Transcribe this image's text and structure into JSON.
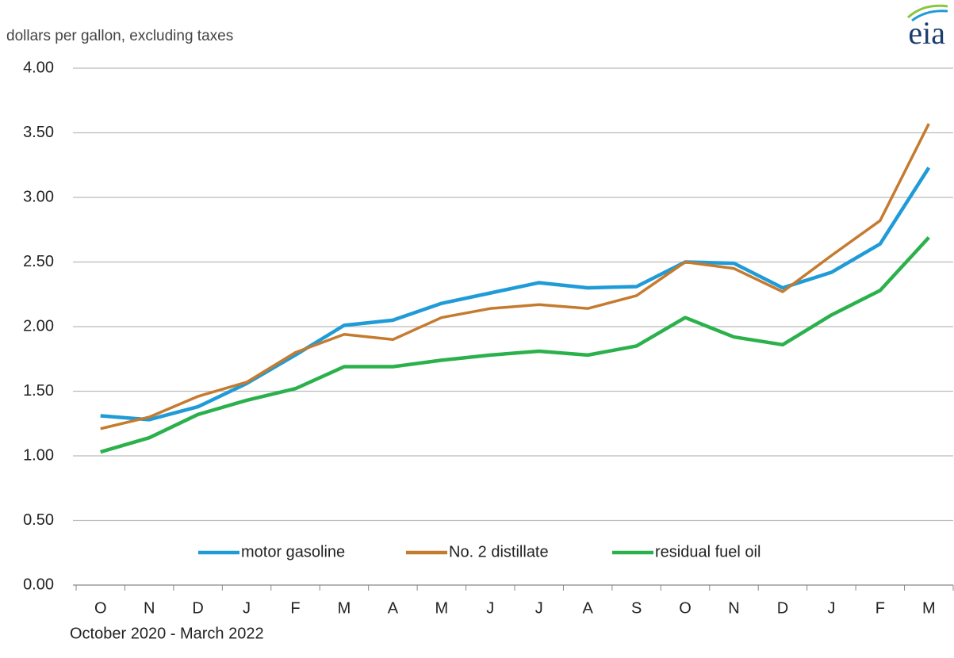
{
  "chart_data": {
    "type": "line",
    "logo": "eia",
    "subtitle": "dollars per gallon, excluding taxes",
    "x_label": "October 2020 - March 2022",
    "categories": [
      "O",
      "N",
      "D",
      "J",
      "F",
      "M",
      "A",
      "M",
      "J",
      "J",
      "A",
      "S",
      "O",
      "N",
      "D",
      "J",
      "F",
      "M"
    ],
    "series": [
      {
        "name": "motor gasoline",
        "color": "#1f9bd7",
        "values": [
          1.31,
          1.28,
          1.38,
          1.56,
          1.78,
          2.01,
          2.05,
          2.18,
          2.26,
          2.34,
          2.3,
          2.31,
          2.5,
          2.49,
          2.3,
          2.42,
          2.64,
          3.23
        ]
      },
      {
        "name": "No. 2 distillate",
        "color": "#c57b2f",
        "values": [
          1.21,
          1.3,
          1.46,
          1.57,
          1.8,
          1.94,
          1.9,
          2.07,
          2.14,
          2.17,
          2.14,
          2.24,
          2.5,
          2.45,
          2.27,
          2.55,
          2.82,
          3.57
        ]
      },
      {
        "name": "residual fuel oil",
        "color": "#2bb14c",
        "values": [
          1.03,
          1.14,
          1.32,
          1.43,
          1.52,
          1.69,
          1.69,
          1.74,
          1.78,
          1.81,
          1.78,
          1.85,
          2.07,
          1.92,
          1.86,
          2.09,
          2.28,
          2.69
        ]
      }
    ],
    "ylim": [
      0,
      4
    ],
    "yticks": [
      {
        "value": 0,
        "label": "0.00"
      },
      {
        "value": 0.5,
        "label": "0.50"
      },
      {
        "value": 1,
        "label": "1.00"
      },
      {
        "value": 1.5,
        "label": "1.50"
      },
      {
        "value": 2,
        "label": "2.00"
      },
      {
        "value": 2.5,
        "label": "2.50"
      },
      {
        "value": 3,
        "label": "3.00"
      },
      {
        "value": 3.5,
        "label": "3.50"
      },
      {
        "value": 4,
        "label": "4.00"
      }
    ],
    "grid": true,
    "legend": "bottom"
  }
}
